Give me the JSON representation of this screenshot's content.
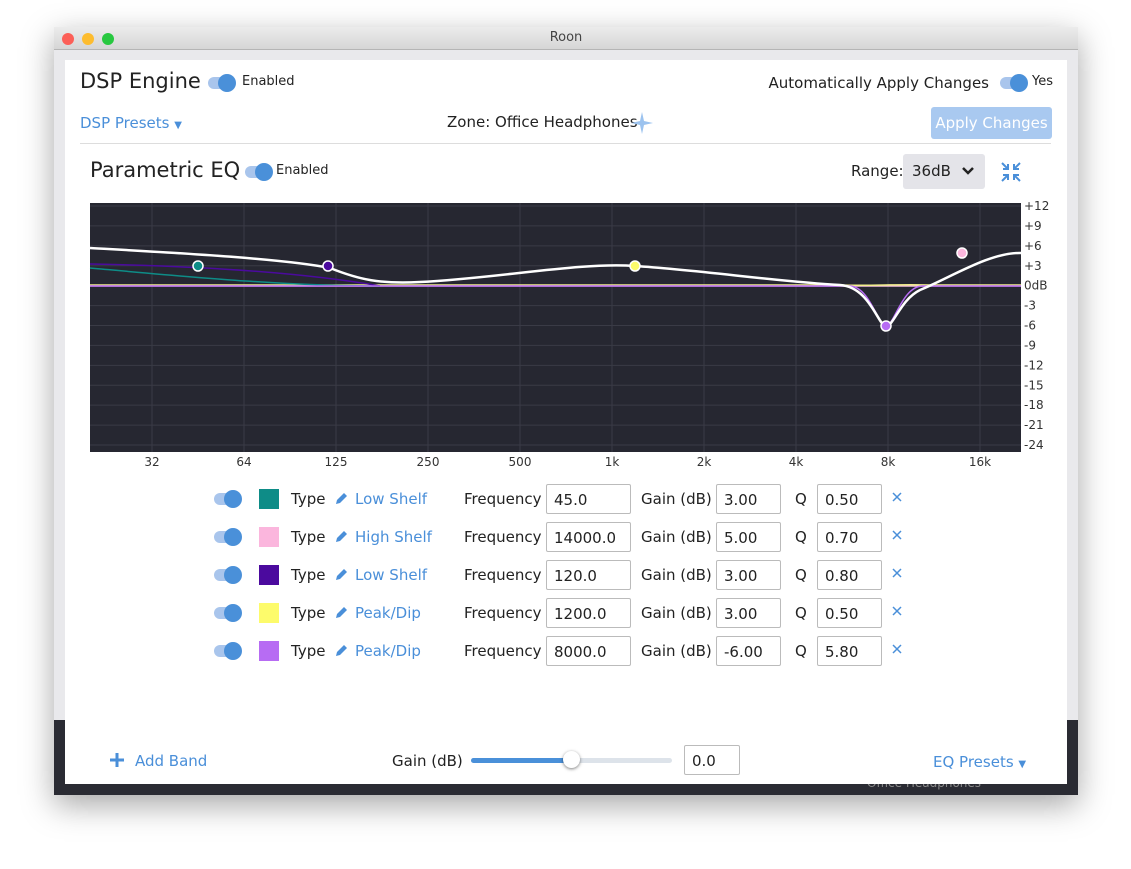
{
  "window": {
    "title": "Roon"
  },
  "background": {
    "zone_text": "Office Headphones"
  },
  "header": {
    "title": "DSP Engine",
    "enabled_label": "Enabled",
    "auto_apply_label": "Automatically Apply Changes",
    "auto_apply_value": "Yes",
    "presets": "DSP Presets",
    "zone": "Zone: Office Headphones",
    "apply_button": "Apply Changes"
  },
  "eq": {
    "title": "Parametric EQ",
    "enabled_label": "Enabled",
    "range_label": "Range:",
    "range_value": "36dB",
    "y_labels": [
      "+12",
      "+9",
      "+6",
      "+3",
      "0dB",
      "-3",
      "-6",
      "-9",
      "-12",
      "-15",
      "-18",
      "-21",
      "-24"
    ],
    "x_labels": [
      "32",
      "64",
      "125",
      "250",
      "500",
      "1k",
      "2k",
      "4k",
      "8k",
      "16k"
    ]
  },
  "bands": {
    "column_labels": {
      "type": "Type",
      "frequency": "Frequency",
      "gain": "Gain (dB)",
      "q": "Q"
    },
    "rows": [
      {
        "color": "#0e8c87",
        "type": "Low Shelf",
        "frequency": "45.0",
        "gain": "3.00",
        "q": "0.50"
      },
      {
        "color": "#fbb6dd",
        "type": "High Shelf",
        "frequency": "14000.0",
        "gain": "5.00",
        "q": "0.70"
      },
      {
        "color": "#4b0a9e",
        "type": "Low Shelf",
        "frequency": "120.0",
        "gain": "3.00",
        "q": "0.80"
      },
      {
        "color": "#fdfb6b",
        "type": "Peak/Dip",
        "frequency": "1200.0",
        "gain": "3.00",
        "q": "0.50"
      },
      {
        "color": "#b76cf3",
        "type": "Peak/Dip",
        "frequency": "8000.0",
        "gain": "-6.00",
        "q": "5.80"
      }
    ]
  },
  "footer": {
    "add_band": "Add Band",
    "gain_label": "Gain (dB)",
    "gain_value": "0.0",
    "eq_presets": "EQ Presets"
  }
}
